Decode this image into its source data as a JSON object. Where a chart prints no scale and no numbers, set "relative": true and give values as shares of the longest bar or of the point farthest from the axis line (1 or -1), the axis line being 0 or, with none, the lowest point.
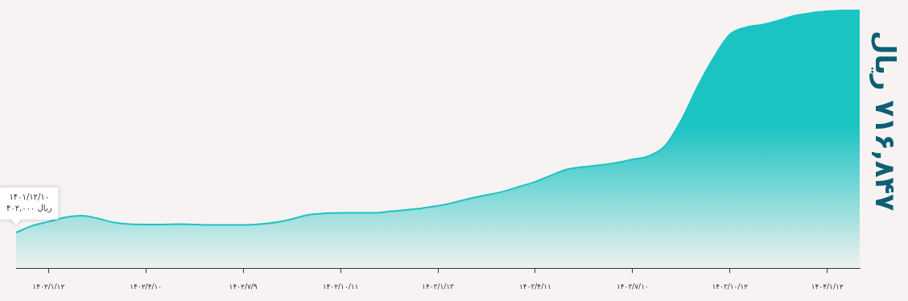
{
  "chart_data": {
    "type": "area",
    "title": "۷۱۶,۸۴۷ ریال",
    "relative": true,
    "marker": "none",
    "grid": false,
    "legend": false,
    "annotations": [
      "۱۴۰۱/۱۲/۱۰",
      "۴۰۲,۰۰۰ ریال"
    ],
    "categories": [
      null,
      null,
      "۱۴۰۲/۱/۱۲",
      null,
      null,
      null,
      null,
      null,
      "۱۴۰۲/۴/۱۰",
      null,
      null,
      null,
      null,
      null,
      "۱۴۰۲/۷/۹",
      null,
      null,
      null,
      null,
      null,
      "۱۴۰۲/۱۰/۱۱",
      null,
      null,
      null,
      null,
      null,
      "۱۴۰۳/۱/۱۳",
      null,
      null,
      null,
      null,
      null,
      "۱۴۰۳/۴/۱۱",
      null,
      null,
      null,
      null,
      null,
      "۱۴۰۳/۷/۱۰",
      null,
      null,
      null,
      null,
      null,
      "۱۴۰۳/۱۰/۱۲",
      null,
      null,
      null,
      null,
      null,
      "۱۴۰۴/۱/۱۲",
      null,
      null
    ],
    "series": [
      {
        "color": "#1cc3c3",
        "values": [
          0.138,
          0.164,
          0.18,
          0.196,
          0.203,
          0.193,
          0.177,
          0.17,
          0.169,
          0.169,
          0.17,
          0.169,
          0.167,
          0.167,
          0.167,
          0.17,
          0.177,
          0.19,
          0.206,
          0.212,
          0.214,
          0.214,
          0.214,
          0.219,
          0.225,
          0.232,
          0.241,
          0.254,
          0.27,
          0.283,
          0.296,
          0.315,
          0.334,
          0.36,
          0.383,
          0.392,
          0.399,
          0.408,
          0.421,
          0.434,
          0.473,
          0.572,
          0.701,
          0.814,
          0.904,
          0.932,
          0.942,
          0.958,
          0.977,
          0.987,
          0.994,
          0.997,
          1
        ]
      }
    ]
  }
}
